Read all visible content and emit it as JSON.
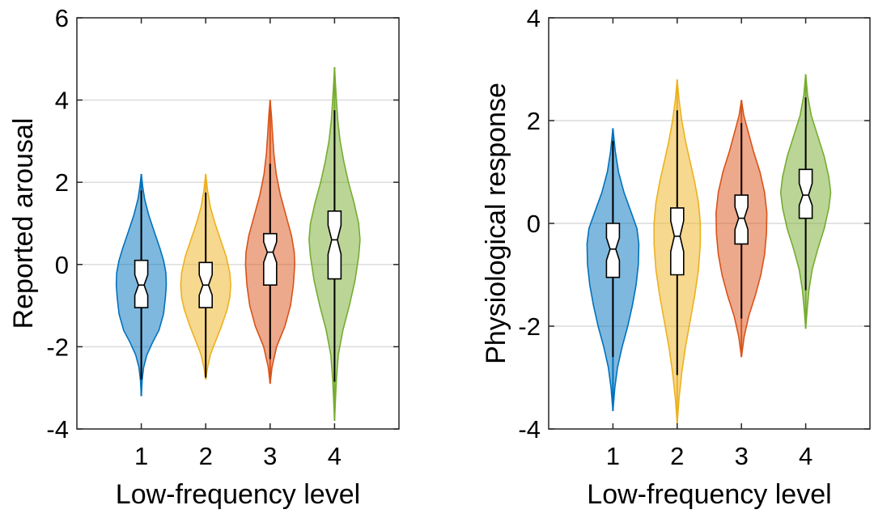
{
  "colors": {
    "level_1": "#0072BD",
    "level_2": "#EDB120",
    "level_3": "#D95319",
    "level_4": "#77AC30",
    "gridline": "#dcdcdc",
    "axes": "#262626"
  },
  "chart_data": [
    {
      "type": "violin",
      "title": "",
      "xlabel": "Low-frequency level",
      "ylabel": "Reported arousal",
      "xlim": [
        0,
        5
      ],
      "ylim": [
        -4,
        6
      ],
      "xticks": [
        "1",
        "2",
        "3",
        "4"
      ],
      "yticks": [
        -4,
        -2,
        0,
        2,
        4,
        6
      ],
      "ytick_labels": [
        "-4",
        "-2",
        "0",
        "2",
        "4",
        "6"
      ],
      "grid": "horizontal",
      "legend": "none",
      "series": [
        {
          "category": "1",
          "color": "#0072BD",
          "range": [
            -3.2,
            2.2
          ],
          "whisker": [
            -2.8,
            1.8
          ],
          "box": [
            -1.05,
            0.1
          ],
          "median": -0.5,
          "notch": [
            -0.75,
            -0.25
          ],
          "density": [
            [
              -3.2,
              0.0
            ],
            [
              -2.8,
              0.02
            ],
            [
              -2.5,
              0.05
            ],
            [
              -2.2,
              0.12
            ],
            [
              -1.9,
              0.24
            ],
            [
              -1.6,
              0.38
            ],
            [
              -1.2,
              0.48
            ],
            [
              -0.8,
              0.52
            ],
            [
              -0.5,
              0.54
            ],
            [
              -0.2,
              0.53
            ],
            [
              0.1,
              0.48
            ],
            [
              0.4,
              0.4
            ],
            [
              0.8,
              0.28
            ],
            [
              1.2,
              0.16
            ],
            [
              1.6,
              0.07
            ],
            [
              1.9,
              0.03
            ],
            [
              2.2,
              0.0
            ]
          ]
        },
        {
          "category": "2",
          "color": "#EDB120",
          "range": [
            -2.8,
            2.2
          ],
          "whisker": [
            -2.75,
            1.75
          ],
          "box": [
            -1.05,
            0.05
          ],
          "median": -0.5,
          "notch": [
            -0.75,
            -0.25
          ],
          "density": [
            [
              -2.8,
              0.0
            ],
            [
              -2.5,
              0.04
            ],
            [
              -2.2,
              0.1
            ],
            [
              -1.9,
              0.2
            ],
            [
              -1.5,
              0.34
            ],
            [
              -1.1,
              0.46
            ],
            [
              -0.8,
              0.52
            ],
            [
              -0.5,
              0.54
            ],
            [
              -0.2,
              0.52
            ],
            [
              0.2,
              0.44
            ],
            [
              0.6,
              0.32
            ],
            [
              1.0,
              0.2
            ],
            [
              1.4,
              0.1
            ],
            [
              1.8,
              0.04
            ],
            [
              2.2,
              0.0
            ]
          ]
        },
        {
          "category": "3",
          "color": "#D95319",
          "range": [
            -2.9,
            4.0
          ],
          "whisker": [
            -2.3,
            2.45
          ],
          "box": [
            -0.5,
            0.75
          ],
          "median": 0.3,
          "notch": [
            0.05,
            0.55
          ],
          "density": [
            [
              -2.9,
              0.0
            ],
            [
              -2.5,
              0.04
            ],
            [
              -2.0,
              0.14
            ],
            [
              -1.5,
              0.32
            ],
            [
              -1.0,
              0.44
            ],
            [
              -0.5,
              0.5
            ],
            [
              0.0,
              0.53
            ],
            [
              0.3,
              0.52
            ],
            [
              0.7,
              0.46
            ],
            [
              1.2,
              0.34
            ],
            [
              1.7,
              0.22
            ],
            [
              2.2,
              0.13
            ],
            [
              2.7,
              0.08
            ],
            [
              3.2,
              0.05
            ],
            [
              3.6,
              0.03
            ],
            [
              4.0,
              0.0
            ]
          ]
        },
        {
          "category": "4",
          "color": "#77AC30",
          "range": [
            -3.8,
            4.8
          ],
          "whisker": [
            -2.85,
            3.75
          ],
          "box": [
            -0.35,
            1.3
          ],
          "median": 0.6,
          "notch": [
            0.25,
            0.95
          ],
          "density": [
            [
              -3.8,
              0.0
            ],
            [
              -3.3,
              0.02
            ],
            [
              -2.8,
              0.04
            ],
            [
              -2.2,
              0.08
            ],
            [
              -1.6,
              0.18
            ],
            [
              -1.0,
              0.32
            ],
            [
              -0.4,
              0.44
            ],
            [
              0.2,
              0.52
            ],
            [
              0.6,
              0.55
            ],
            [
              1.0,
              0.52
            ],
            [
              1.5,
              0.42
            ],
            [
              2.0,
              0.3
            ],
            [
              2.5,
              0.2
            ],
            [
              3.0,
              0.12
            ],
            [
              3.5,
              0.07
            ],
            [
              4.0,
              0.04
            ],
            [
              4.4,
              0.02
            ],
            [
              4.8,
              0.0
            ]
          ]
        }
      ]
    },
    {
      "type": "violin",
      "title": "",
      "xlabel": "Low-frequency level",
      "ylabel": "Physiological response",
      "xlim": [
        0,
        5
      ],
      "ylim": [
        -4,
        4
      ],
      "xticks": [
        "1",
        "2",
        "3",
        "4"
      ],
      "yticks": [
        -4,
        -2,
        0,
        2,
        4
      ],
      "ytick_labels": [
        "-4",
        "-2",
        "0",
        "2",
        "4"
      ],
      "grid": "horizontal",
      "legend": "none",
      "series": [
        {
          "category": "1",
          "color": "#0072BD",
          "range": [
            -3.65,
            1.85
          ],
          "whisker": [
            -2.6,
            1.6
          ],
          "box": [
            -1.05,
            0.0
          ],
          "median": -0.5,
          "notch": [
            -0.72,
            -0.28
          ],
          "density": [
            [
              -3.65,
              0.0
            ],
            [
              -3.2,
              0.04
            ],
            [
              -2.8,
              0.1
            ],
            [
              -2.4,
              0.2
            ],
            [
              -2.0,
              0.32
            ],
            [
              -1.6,
              0.42
            ],
            [
              -1.2,
              0.5
            ],
            [
              -0.8,
              0.55
            ],
            [
              -0.4,
              0.56
            ],
            [
              -0.1,
              0.52
            ],
            [
              0.2,
              0.4
            ],
            [
              0.6,
              0.24
            ],
            [
              1.0,
              0.12
            ],
            [
              1.4,
              0.05
            ],
            [
              1.85,
              0.0
            ]
          ]
        },
        {
          "category": "2",
          "color": "#EDB120",
          "range": [
            -3.9,
            2.8
          ],
          "whisker": [
            -2.95,
            2.2
          ],
          "box": [
            -1.0,
            0.3
          ],
          "median": -0.25,
          "notch": [
            -0.55,
            0.05
          ],
          "density": [
            [
              -3.9,
              0.0
            ],
            [
              -3.4,
              0.04
            ],
            [
              -2.9,
              0.1
            ],
            [
              -2.4,
              0.18
            ],
            [
              -1.9,
              0.28
            ],
            [
              -1.4,
              0.38
            ],
            [
              -0.9,
              0.46
            ],
            [
              -0.4,
              0.5
            ],
            [
              0.0,
              0.5
            ],
            [
              0.4,
              0.46
            ],
            [
              0.8,
              0.38
            ],
            [
              1.2,
              0.28
            ],
            [
              1.6,
              0.18
            ],
            [
              2.0,
              0.1
            ],
            [
              2.4,
              0.04
            ],
            [
              2.8,
              0.0
            ]
          ]
        },
        {
          "category": "3",
          "color": "#D95319",
          "range": [
            -2.6,
            2.4
          ],
          "whisker": [
            -1.85,
            1.95
          ],
          "box": [
            -0.4,
            0.55
          ],
          "median": 0.1,
          "notch": [
            -0.12,
            0.32
          ],
          "density": [
            [
              -2.6,
              0.0
            ],
            [
              -2.2,
              0.06
            ],
            [
              -1.8,
              0.16
            ],
            [
              -1.4,
              0.3
            ],
            [
              -1.0,
              0.42
            ],
            [
              -0.6,
              0.5
            ],
            [
              -0.2,
              0.54
            ],
            [
              0.2,
              0.55
            ],
            [
              0.6,
              0.5
            ],
            [
              1.0,
              0.4
            ],
            [
              1.4,
              0.26
            ],
            [
              1.8,
              0.14
            ],
            [
              2.1,
              0.05
            ],
            [
              2.4,
              0.0
            ]
          ]
        },
        {
          "category": "4",
          "color": "#77AC30",
          "range": [
            -2.05,
            2.9
          ],
          "whisker": [
            -1.3,
            2.45
          ],
          "box": [
            0.1,
            1.05
          ],
          "median": 0.55,
          "notch": [
            0.35,
            0.78
          ],
          "density": [
            [
              -2.05,
              0.0
            ],
            [
              -1.7,
              0.03
            ],
            [
              -1.3,
              0.07
            ],
            [
              -0.9,
              0.14
            ],
            [
              -0.5,
              0.26
            ],
            [
              -0.1,
              0.4
            ],
            [
              0.3,
              0.5
            ],
            [
              0.6,
              0.54
            ],
            [
              0.9,
              0.5
            ],
            [
              1.3,
              0.4
            ],
            [
              1.7,
              0.26
            ],
            [
              2.1,
              0.12
            ],
            [
              2.5,
              0.04
            ],
            [
              2.9,
              0.0
            ]
          ]
        }
      ]
    }
  ]
}
